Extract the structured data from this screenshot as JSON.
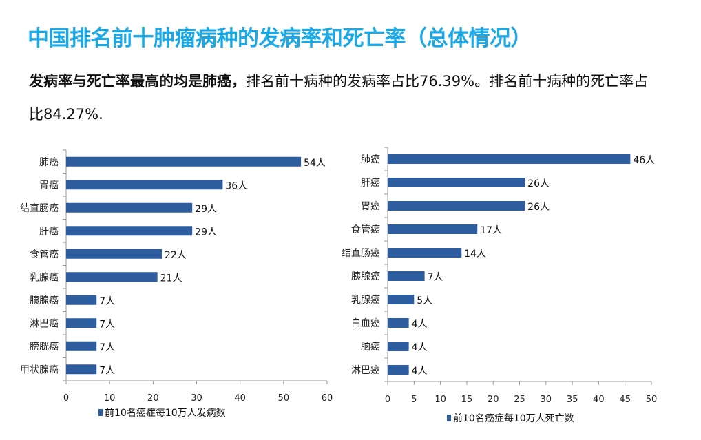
{
  "title": "中国排名前十肿瘤病种的发病率和死亡率（总体情况）",
  "desc": {
    "bold": "发病率与死亡率最高的均是肺癌，",
    "rest": "排名前十病种的发病率占比76.39%。排名前十病种的死亡率占比84.27%."
  },
  "colors": {
    "title": "#1aa8e6",
    "bar": "#2e5d9f"
  },
  "chart_data": [
    {
      "type": "bar",
      "orientation": "horizontal",
      "categories": [
        "肺癌",
        "胃癌",
        "结直肠癌",
        "肝癌",
        "食管癌",
        "乳腺癌",
        "胰腺癌",
        "淋巴癌",
        "膀胱癌",
        "甲状腺癌"
      ],
      "values": [
        54,
        36,
        29,
        29,
        22,
        21,
        7,
        7,
        7,
        7
      ],
      "labels": [
        "54人",
        "36人",
        "29人",
        "29人",
        "22人",
        "21人",
        "7人",
        "7人",
        "7人",
        "7人"
      ],
      "xlim": [
        0,
        60
      ],
      "xticks": [
        "0",
        "10",
        "20",
        "30",
        "40",
        "50",
        "60"
      ],
      "legend": "前10名癌症每10万人发病数",
      "legend_position": "bottom",
      "grid": false
    },
    {
      "type": "bar",
      "orientation": "horizontal",
      "categories": [
        "肺癌",
        "肝癌",
        "胃癌",
        "食管癌",
        "结直肠癌",
        "胰腺癌",
        "乳腺癌",
        "白血癌",
        "脑癌",
        "淋巴癌"
      ],
      "values": [
        46,
        26,
        26,
        17,
        14,
        7,
        5,
        4,
        4,
        4
      ],
      "labels": [
        "46人",
        "26人",
        "26人",
        "17人",
        "14人",
        "7人",
        "5人",
        "4人",
        "4人",
        "4人"
      ],
      "xlim": [
        0,
        50
      ],
      "xticks": [
        "0",
        "5",
        "10",
        "15",
        "20",
        "25",
        "30",
        "35",
        "40",
        "45",
        "50"
      ],
      "legend": "前10名癌症每10万人死亡数",
      "legend_position": "bottom",
      "grid": false
    }
  ]
}
